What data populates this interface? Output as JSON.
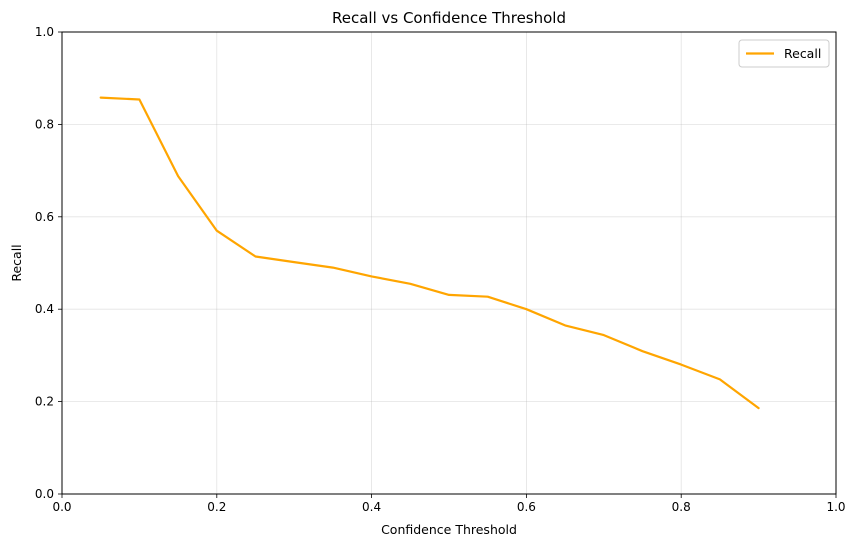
{
  "chart_data": {
    "type": "line",
    "title": "Recall vs Confidence Threshold",
    "xlabel": "Confidence Threshold",
    "ylabel": "Recall",
    "xlim": [
      0.0,
      1.0
    ],
    "ylim": [
      0.0,
      1.0
    ],
    "xticks": [
      "0.0",
      "0.2",
      "0.4",
      "0.6",
      "0.8",
      "1.0"
    ],
    "yticks": [
      "0.0",
      "0.2",
      "0.4",
      "0.6",
      "0.8",
      "1.0"
    ],
    "grid": true,
    "legend_position": "top-right",
    "series": [
      {
        "name": "Recall",
        "color": "#FFA500",
        "x": [
          0.05,
          0.1,
          0.15,
          0.2,
          0.25,
          0.3,
          0.35,
          0.4,
          0.45,
          0.5,
          0.55,
          0.6,
          0.65,
          0.7,
          0.75,
          0.8,
          0.85,
          0.9
        ],
        "y": [
          0.858,
          0.854,
          0.688,
          0.57,
          0.514,
          0.502,
          0.49,
          0.471,
          0.455,
          0.431,
          0.427,
          0.4,
          0.365,
          0.344,
          0.309,
          0.28,
          0.248,
          0.186
        ]
      }
    ]
  }
}
